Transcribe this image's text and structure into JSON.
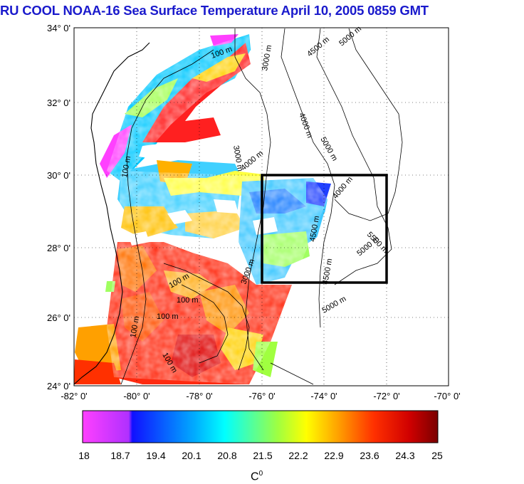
{
  "title": "RU COOL  NOAA-16 Sea Surface Temperature April 10, 2005 0859 GMT",
  "axes": {
    "lat_labels": [
      "34° 0'",
      "32° 0'",
      "30° 0'",
      "28° 0'",
      "26° 0'",
      "24° 0'"
    ],
    "lon_labels": [
      "-82° 0'",
      "-80° 0'",
      "-78° 0'",
      "-76° 0'",
      "-74° 0'",
      "-72° 0'",
      "-70° 0'"
    ],
    "lat_range": [
      24,
      34
    ],
    "lon_range": [
      -82,
      -70
    ],
    "grid": true
  },
  "study_box": {
    "lon": [
      -76,
      -72
    ],
    "lat": [
      27,
      30
    ]
  },
  "contour_labels": [
    "100 m",
    "3000 m",
    "4000 m",
    "4500 m",
    "5000 m",
    "5500 m"
  ],
  "colorbar": {
    "ticks": [
      "18",
      "18.7",
      "19.4",
      "20.1",
      "20.8",
      "21.5",
      "22.2",
      "22.9",
      "23.6",
      "24.3",
      "25"
    ],
    "unit_base": "C",
    "unit_sup": "0",
    "colors": [
      "#ff40ff",
      "#1010ff",
      "#00ffff",
      "#ffff00",
      "#ff0000",
      "#8b0000"
    ]
  }
}
